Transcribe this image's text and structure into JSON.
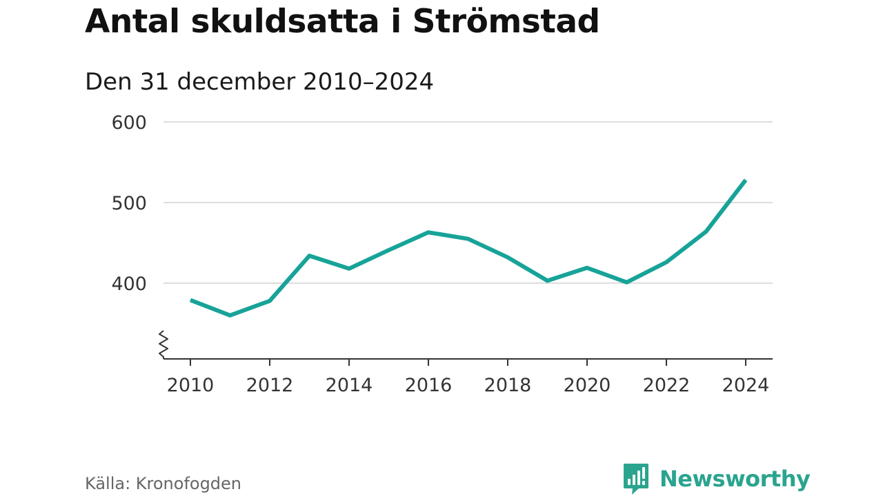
{
  "title": "Antal skuldsatta i Strömstad",
  "subtitle": "Den 31 december 2010–2024",
  "source": "Källa: Kronofogden",
  "brand": {
    "name": "Newsworthy",
    "icon": "newsworthy-logo-icon",
    "color": "#2aa48f"
  },
  "colors": {
    "line": "#17a398",
    "grid": "#dddddd",
    "axis": "#333333"
  },
  "chart_data": {
    "type": "line",
    "title": "Antal skuldsatta i Strömstad",
    "subtitle": "Den 31 december 2010–2024",
    "xlabel": "",
    "ylabel": "",
    "x": [
      2010,
      2011,
      2012,
      2013,
      2014,
      2015,
      2016,
      2017,
      2018,
      2019,
      2020,
      2021,
      2022,
      2023,
      2024
    ],
    "series": [
      {
        "name": "Antal skuldsatta",
        "values": [
          379,
          360,
          378,
          434,
          418,
          441,
          463,
          455,
          432,
          403,
          419,
          401,
          426,
          464,
          528
        ]
      }
    ],
    "xticks": [
      "2010",
      "2012",
      "2014",
      "2016",
      "2018",
      "2020",
      "2022",
      "2024"
    ],
    "yticks": [
      "400",
      "500",
      "600"
    ],
    "xlim": [
      2010,
      2024
    ],
    "ylim": [
      306,
      600
    ],
    "grid": true,
    "axis_break": true
  }
}
